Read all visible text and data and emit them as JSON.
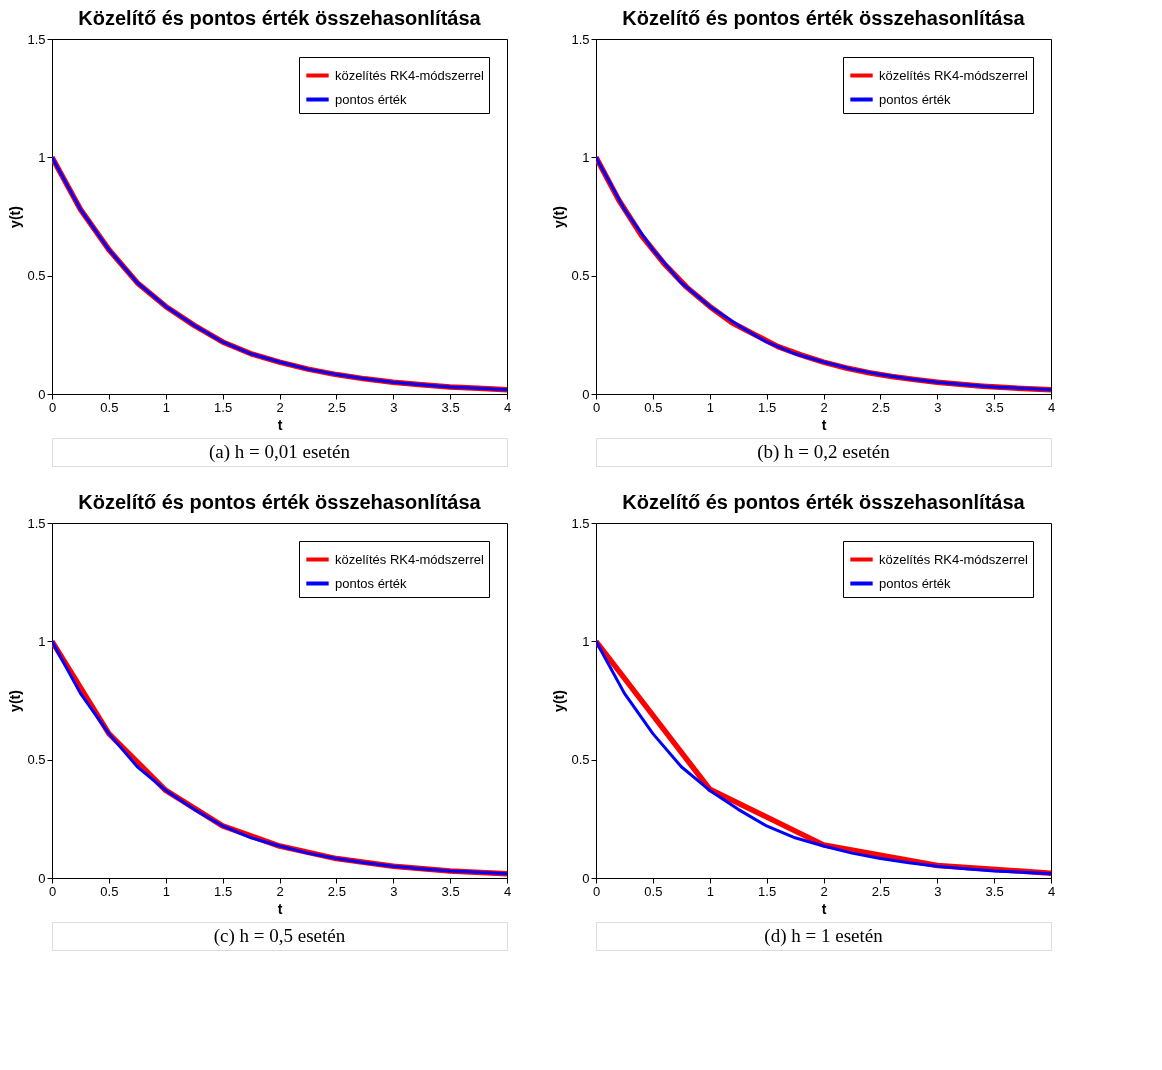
{
  "chart_data": [
    {
      "type": "line",
      "title": "Közelítő és pontos érték összehasonlítása",
      "xlabel": "t",
      "ylabel": "y(t)",
      "xlim": [
        0,
        4
      ],
      "ylim": [
        0,
        1.5
      ],
      "xticks": [
        0,
        0.5,
        1,
        1.5,
        2,
        2.5,
        3,
        3.5,
        4
      ],
      "yticks": [
        0,
        0.5,
        1,
        1.5
      ],
      "legend": "top right",
      "grid": false,
      "annotations": [
        "(a) h = 0,01 esetén"
      ],
      "series": [
        {
          "name": "közelítés RK4-módszerrel",
          "color": "#ff0000",
          "x": [
            0,
            0.25,
            0.5,
            0.75,
            1,
            1.25,
            1.5,
            1.75,
            2,
            2.25,
            2.5,
            2.75,
            3,
            3.25,
            3.5,
            3.75,
            4
          ],
          "values": [
            1,
            0.78,
            0.61,
            0.47,
            0.37,
            0.29,
            0.22,
            0.17,
            0.135,
            0.105,
            0.082,
            0.064,
            0.05,
            0.039,
            0.03,
            0.024,
            0.018
          ]
        },
        {
          "name": "pontos érték",
          "color": "#0000ff",
          "x": [
            0,
            0.25,
            0.5,
            0.75,
            1,
            1.25,
            1.5,
            1.75,
            2,
            2.25,
            2.5,
            2.75,
            3,
            3.25,
            3.5,
            3.75,
            4
          ],
          "values": [
            1,
            0.78,
            0.61,
            0.47,
            0.37,
            0.29,
            0.22,
            0.17,
            0.135,
            0.105,
            0.082,
            0.064,
            0.05,
            0.039,
            0.03,
            0.024,
            0.018
          ]
        }
      ]
    },
    {
      "type": "line",
      "title": "Közelítő és pontos érték összehasonlítása",
      "xlabel": "t",
      "ylabel": "y(t)",
      "xlim": [
        0,
        4
      ],
      "ylim": [
        0,
        1.5
      ],
      "xticks": [
        0,
        0.5,
        1,
        1.5,
        2,
        2.5,
        3,
        3.5,
        4
      ],
      "yticks": [
        0,
        0.5,
        1,
        1.5
      ],
      "legend": "top right",
      "grid": false,
      "annotations": [
        "(b) h = 0,2 esetén"
      ],
      "series": [
        {
          "name": "közelítés RK4-módszerrel",
          "color": "#ff0000",
          "x": [
            0,
            0.2,
            0.4,
            0.6,
            0.8,
            1,
            1.2,
            1.4,
            1.6,
            1.8,
            2,
            2.2,
            2.4,
            2.6,
            2.8,
            3,
            3.2,
            3.4,
            3.6,
            3.8,
            4
          ],
          "values": [
            1,
            0.82,
            0.67,
            0.55,
            0.45,
            0.37,
            0.3,
            0.25,
            0.2,
            0.165,
            0.135,
            0.11,
            0.09,
            0.074,
            0.061,
            0.05,
            0.041,
            0.033,
            0.027,
            0.022,
            0.018
          ]
        },
        {
          "name": "pontos érték",
          "color": "#0000ff",
          "x": [
            0,
            0.25,
            0.5,
            0.75,
            1,
            1.25,
            1.5,
            1.75,
            2,
            2.25,
            2.5,
            2.75,
            3,
            3.25,
            3.5,
            3.75,
            4
          ],
          "values": [
            1,
            0.78,
            0.61,
            0.47,
            0.37,
            0.29,
            0.22,
            0.17,
            0.135,
            0.105,
            0.082,
            0.064,
            0.05,
            0.039,
            0.03,
            0.024,
            0.018
          ]
        }
      ]
    },
    {
      "type": "line",
      "title": "Közelítő és pontos érték összehasonlítása",
      "xlabel": "t",
      "ylabel": "y(t)",
      "xlim": [
        0,
        4
      ],
      "ylim": [
        0,
        1.5
      ],
      "xticks": [
        0,
        0.5,
        1,
        1.5,
        2,
        2.5,
        3,
        3.5,
        4
      ],
      "yticks": [
        0,
        0.5,
        1,
        1.5
      ],
      "legend": "top right",
      "grid": false,
      "annotations": [
        "(c) h = 0,5 esetén"
      ],
      "series": [
        {
          "name": "közelítés RK4-módszerrel",
          "color": "#ff0000",
          "x": [
            0,
            0.5,
            1,
            1.5,
            2,
            2.5,
            3,
            3.5,
            4
          ],
          "values": [
            1,
            0.61,
            0.37,
            0.22,
            0.135,
            0.082,
            0.05,
            0.03,
            0.018
          ]
        },
        {
          "name": "pontos érték",
          "color": "#0000ff",
          "x": [
            0,
            0.25,
            0.5,
            0.75,
            1,
            1.25,
            1.5,
            1.75,
            2,
            2.25,
            2.5,
            2.75,
            3,
            3.25,
            3.5,
            3.75,
            4
          ],
          "values": [
            1,
            0.78,
            0.61,
            0.47,
            0.37,
            0.29,
            0.22,
            0.17,
            0.135,
            0.105,
            0.082,
            0.064,
            0.05,
            0.039,
            0.03,
            0.024,
            0.018
          ]
        }
      ]
    },
    {
      "type": "line",
      "title": "Közelítő és pontos érték összehasonlítása",
      "xlabel": "t",
      "ylabel": "y(t)",
      "xlim": [
        0,
        4
      ],
      "ylim": [
        0,
        1.5
      ],
      "xticks": [
        0,
        0.5,
        1,
        1.5,
        2,
        2.5,
        3,
        3.5,
        4
      ],
      "yticks": [
        0,
        0.5,
        1,
        1.5
      ],
      "legend": "top right",
      "grid": false,
      "annotations": [
        "(d) h = 1 esetén"
      ],
      "series": [
        {
          "name": "közelítés RK4-módszerrel",
          "color": "#ff0000",
          "x": [
            0,
            1,
            2,
            3,
            4
          ],
          "values": [
            1,
            0.375,
            0.14,
            0.053,
            0.02
          ]
        },
        {
          "name": "pontos érték",
          "color": "#0000ff",
          "x": [
            0,
            0.25,
            0.5,
            0.75,
            1,
            1.25,
            1.5,
            1.75,
            2,
            2.25,
            2.5,
            2.75,
            3,
            3.25,
            3.5,
            3.75,
            4
          ],
          "values": [
            1,
            0.78,
            0.61,
            0.47,
            0.37,
            0.29,
            0.22,
            0.17,
            0.135,
            0.105,
            0.082,
            0.064,
            0.05,
            0.039,
            0.03,
            0.024,
            0.018
          ]
        }
      ]
    }
  ]
}
